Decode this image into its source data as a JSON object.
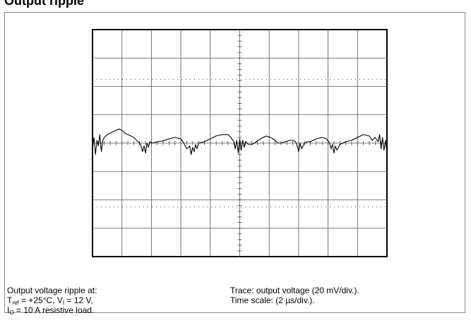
{
  "title": "Output ripple",
  "caption_left": {
    "line1": "Output voltage ripple at:",
    "line2": {
      "t_main": "T",
      "t_sub": "ref",
      "t_rest": " = +25°C, V",
      "v_sub": "I",
      "v_rest": " = 12 V,"
    },
    "line3": {
      "i_main": "I",
      "i_sub": "O",
      "i_rest": " = 10 A resistive load."
    }
  },
  "caption_right": {
    "line1": "Trace: output voltage (20 mV/div.).",
    "line2": "Time scale: (2 µs/div.)."
  },
  "chart_data": {
    "type": "line",
    "title": "",
    "xlabel": "",
    "ylabel": "",
    "grid": true,
    "divisions": {
      "x": 10,
      "y": 8
    },
    "xlim": [
      0,
      10
    ],
    "ylim": [
      -4,
      4
    ],
    "series": [
      {
        "values": [
          [
            0.0,
            -0.2
          ],
          [
            0.05,
            0.2
          ],
          [
            0.1,
            -0.4
          ],
          [
            0.15,
            0.1
          ],
          [
            0.2,
            -0.1
          ],
          [
            0.25,
            0.3
          ],
          [
            0.3,
            -0.3
          ],
          [
            0.35,
            0.1
          ],
          [
            0.4,
            0.2
          ],
          [
            0.5,
            0.3
          ],
          [
            0.6,
            0.35
          ],
          [
            0.7,
            0.4
          ],
          [
            0.8,
            0.45
          ],
          [
            0.9,
            0.5
          ],
          [
            1.0,
            0.45
          ],
          [
            1.1,
            0.35
          ],
          [
            1.2,
            0.3
          ],
          [
            1.3,
            0.25
          ],
          [
            1.4,
            0.2
          ],
          [
            1.5,
            0.1
          ],
          [
            1.6,
            0.0
          ],
          [
            1.65,
            -0.1
          ],
          [
            1.7,
            -0.3
          ],
          [
            1.75,
            -0.1
          ],
          [
            1.8,
            -0.35
          ],
          [
            1.85,
            0.0
          ],
          [
            1.9,
            -0.15
          ],
          [
            1.95,
            0.05
          ],
          [
            2.0,
            0.0
          ],
          [
            2.1,
            0.02
          ],
          [
            2.2,
            0.05
          ],
          [
            2.4,
            0.08
          ],
          [
            2.6,
            0.15
          ],
          [
            2.8,
            0.2
          ],
          [
            3.0,
            0.15
          ],
          [
            3.1,
            0.0
          ],
          [
            3.2,
            -0.2
          ],
          [
            3.3,
            -0.1
          ],
          [
            3.35,
            -0.4
          ],
          [
            3.4,
            -0.15
          ],
          [
            3.45,
            -0.3
          ],
          [
            3.5,
            -0.05
          ],
          [
            3.55,
            -0.2
          ],
          [
            3.6,
            0.0
          ],
          [
            3.7,
            0.02
          ],
          [
            3.8,
            0.05
          ],
          [
            4.0,
            0.15
          ],
          [
            4.2,
            0.25
          ],
          [
            4.4,
            0.3
          ],
          [
            4.6,
            0.3
          ],
          [
            4.7,
            0.2
          ],
          [
            4.8,
            0.05
          ],
          [
            4.85,
            -0.2
          ],
          [
            4.9,
            0.1
          ],
          [
            4.95,
            -0.35
          ],
          [
            5.0,
            0.15
          ],
          [
            5.05,
            -0.25
          ],
          [
            5.1,
            0.1
          ],
          [
            5.15,
            -0.15
          ],
          [
            5.2,
            0.05
          ],
          [
            5.3,
            -0.05
          ],
          [
            5.4,
            -0.05
          ],
          [
            5.5,
            0.0
          ],
          [
            5.7,
            0.15
          ],
          [
            5.9,
            0.25
          ],
          [
            6.05,
            0.2
          ],
          [
            6.2,
            0.1
          ],
          [
            6.3,
            0.0
          ],
          [
            6.4,
            0.0
          ],
          [
            6.55,
            0.05
          ],
          [
            6.7,
            0.1
          ],
          [
            6.8,
            0.1
          ],
          [
            6.9,
            0.05
          ],
          [
            6.95,
            -0.1
          ],
          [
            7.0,
            -0.3
          ],
          [
            7.05,
            0.0
          ],
          [
            7.1,
            -0.2
          ],
          [
            7.2,
            0.0
          ],
          [
            7.3,
            0.05
          ],
          [
            7.4,
            0.05
          ],
          [
            7.5,
            0.1
          ],
          [
            7.6,
            0.15
          ],
          [
            7.8,
            0.2
          ],
          [
            7.95,
            0.15
          ],
          [
            8.05,
            0.0
          ],
          [
            8.1,
            -0.2
          ],
          [
            8.15,
            -0.05
          ],
          [
            8.2,
            -0.35
          ],
          [
            8.25,
            -0.1
          ],
          [
            8.3,
            -0.25
          ],
          [
            8.4,
            -0.05
          ],
          [
            8.5,
            0.0
          ],
          [
            8.6,
            0.05
          ],
          [
            8.8,
            0.1
          ],
          [
            9.0,
            0.2
          ],
          [
            9.2,
            0.3
          ],
          [
            9.4,
            0.25
          ],
          [
            9.5,
            0.1
          ],
          [
            9.6,
            0.2
          ],
          [
            9.7,
            0.05
          ],
          [
            9.75,
            0.3
          ],
          [
            9.8,
            -0.2
          ],
          [
            9.85,
            0.2
          ],
          [
            9.9,
            -0.25
          ],
          [
            9.95,
            0.1
          ],
          [
            10.0,
            -0.3
          ]
        ]
      }
    ]
  }
}
